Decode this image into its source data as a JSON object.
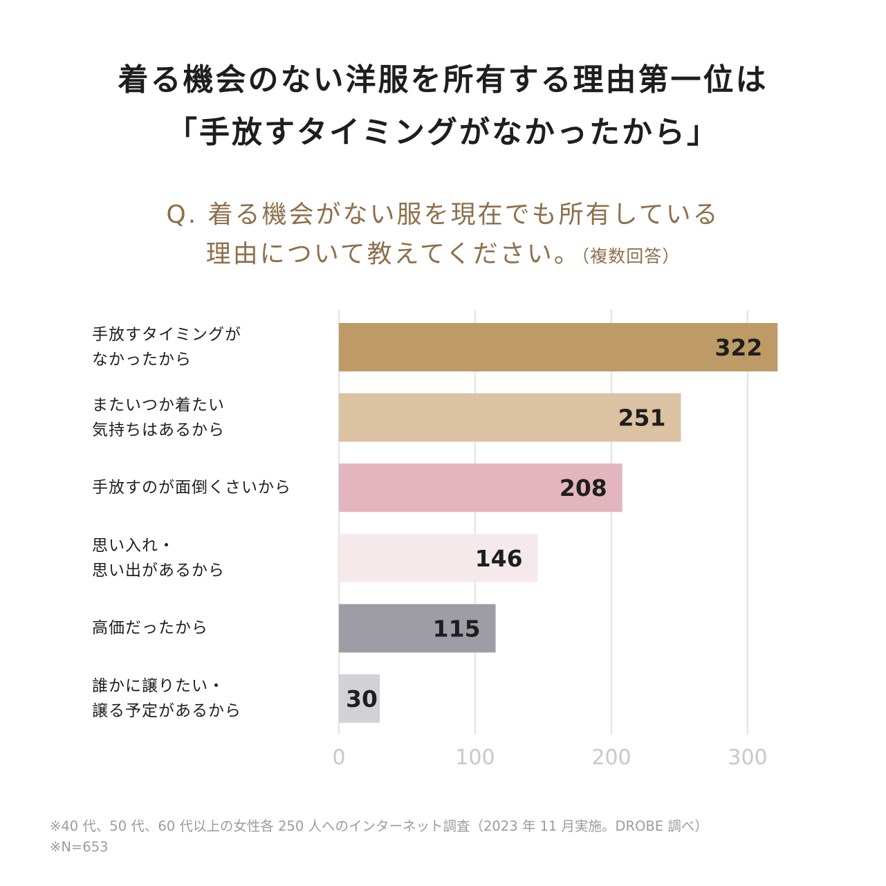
{
  "title": {
    "line1": "着る機会のない洋服を所有する理由第一位は",
    "line2": "「手放すタイミングがなかったから」"
  },
  "question": {
    "line1": "Q. 着る機会がない服を現在でも所有している",
    "line2": "理由について教えてください。",
    "note": "（複数回答）"
  },
  "chart_data": {
    "type": "bar",
    "orientation": "horizontal",
    "categories": [
      [
        "手放すタイミングが",
        "なかったから"
      ],
      [
        "またいつか着たい",
        "気持ちはあるから"
      ],
      [
        "手放すのが面倒くさいから"
      ],
      [
        "思い入れ・",
        "思い出があるから"
      ],
      [
        "高価だったから"
      ],
      [
        "誰かに譲りたい・",
        "譲る予定があるから"
      ]
    ],
    "values": [
      322,
      251,
      208,
      146,
      115,
      30
    ],
    "colors": [
      "#be9a66",
      "#dac2a2",
      "#e3b5bf",
      "#f5e9ec",
      "#9e9da6",
      "#d1d1d6"
    ],
    "xlim": [
      0,
      300
    ],
    "xticks": [
      0,
      100,
      200,
      300
    ],
    "grid": true,
    "data_labels": true
  },
  "footnote": {
    "line1": "※40 代、50 代、60 代以上の女性各 250 人へのインターネット調査（2023 年 11 月実施。DROBE 調べ）",
    "line2": "※N=653"
  }
}
